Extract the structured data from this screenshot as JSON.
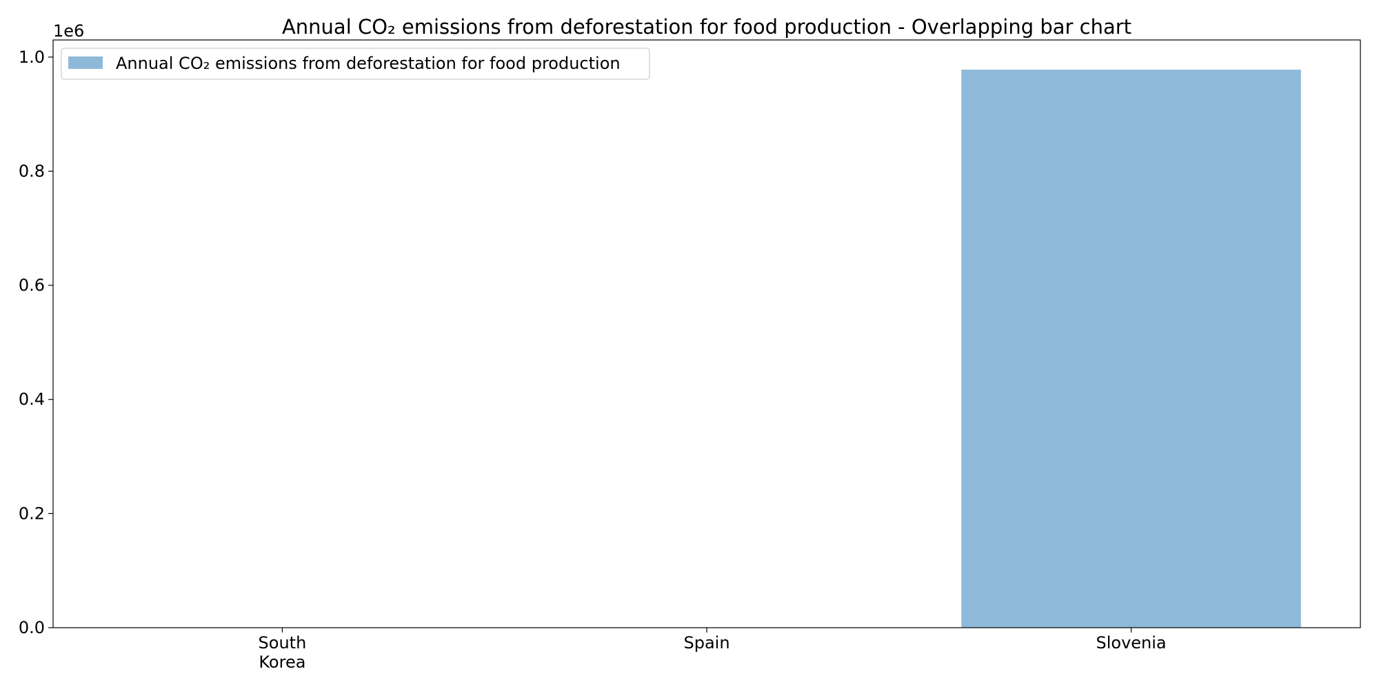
{
  "chart_data": {
    "type": "bar",
    "title": "Annual CO₂ emissions from deforestation for food production - Overlapping bar chart",
    "categories": [
      "South\nKorea",
      "Spain",
      "Slovenia"
    ],
    "series": [
      {
        "name": "Annual CO₂ emissions from deforestation for food production",
        "values": [
          0,
          0,
          978000
        ],
        "color": "#8fb9d8"
      }
    ],
    "xlabel": "",
    "ylabel": "",
    "ylim": [
      0,
      1030000
    ],
    "yticks": [
      0,
      200000,
      400000,
      600000,
      800000,
      1000000
    ],
    "ytick_labels": [
      "0.0",
      "0.2",
      "0.4",
      "0.6",
      "0.8",
      "1.0"
    ],
    "y_offset_label": "1e6",
    "grid": false,
    "legend_position": "upper-left"
  }
}
